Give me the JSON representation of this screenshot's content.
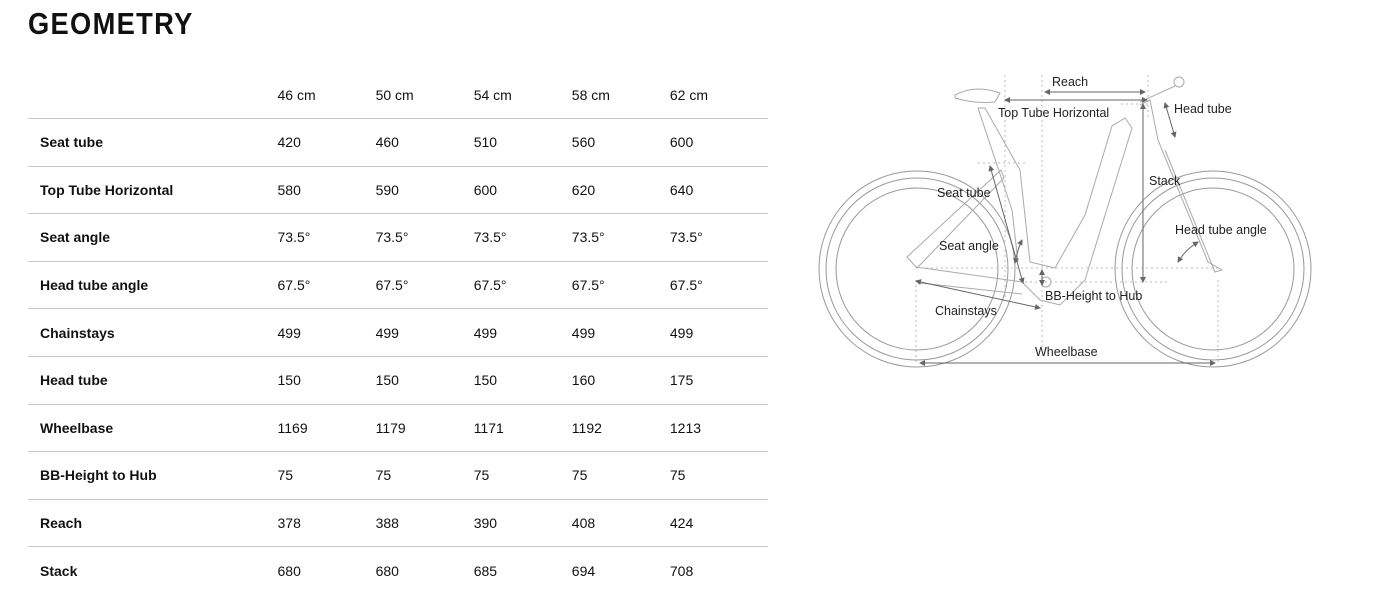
{
  "title": "GEOMETRY",
  "sizes": [
    "46 cm",
    "50 cm",
    "54 cm",
    "58 cm",
    "62 cm"
  ],
  "rows": [
    {
      "label": "Seat tube",
      "values": [
        "420",
        "460",
        "510",
        "560",
        "600"
      ]
    },
    {
      "label": "Top Tube Horizontal",
      "values": [
        "580",
        "590",
        "600",
        "620",
        "640"
      ]
    },
    {
      "label": "Seat angle",
      "values": [
        "73.5°",
        "73.5°",
        "73.5°",
        "73.5°",
        "73.5°"
      ]
    },
    {
      "label": "Head tube angle",
      "values": [
        "67.5°",
        "67.5°",
        "67.5°",
        "67.5°",
        "67.5°"
      ]
    },
    {
      "label": "Chainstays",
      "values": [
        "499",
        "499",
        "499",
        "499",
        "499"
      ]
    },
    {
      "label": "Head tube",
      "values": [
        "150",
        "150",
        "150",
        "160",
        "175"
      ]
    },
    {
      "label": "Wheelbase",
      "values": [
        "1169",
        "1179",
        "1171",
        "1192",
        "1213"
      ]
    },
    {
      "label": "BB-Height to Hub",
      "values": [
        "75",
        "75",
        "75",
        "75",
        "75"
      ]
    },
    {
      "label": "Reach",
      "values": [
        "378",
        "388",
        "390",
        "408",
        "424"
      ]
    },
    {
      "label": "Stack",
      "values": [
        "680",
        "680",
        "685",
        "694",
        "708"
      ]
    }
  ],
  "diagram": {
    "labels": {
      "reach": "Reach",
      "top_tube": "Top Tube Horizontal",
      "head_tube": "Head tube",
      "stack": "Stack",
      "seat_tube": "Seat tube",
      "seat_angle": "Seat angle",
      "head_tube_angle": "Head tube angle",
      "bb_height": "BB-Height to Hub",
      "chainstays": "Chainstays",
      "wheelbase": "Wheelbase"
    }
  }
}
